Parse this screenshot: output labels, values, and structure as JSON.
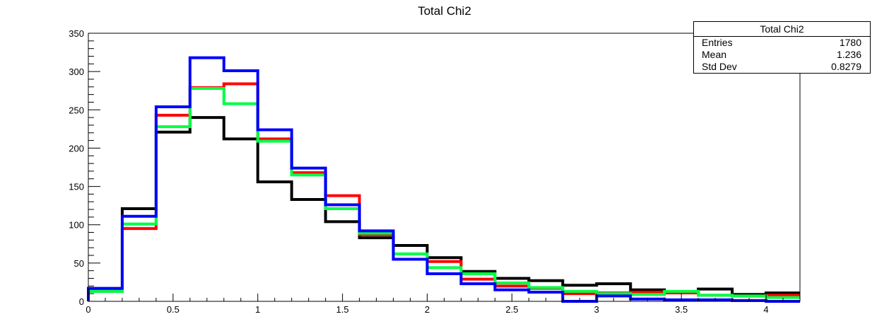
{
  "chart_data": {
    "type": "histogram",
    "title": "Total Chi2",
    "xlim": [
      0,
      4.2
    ],
    "ylim": [
      0,
      350
    ],
    "x_ticks": [
      "0",
      "0.5",
      "1",
      "1.5",
      "2",
      "2.5",
      "3",
      "3.5",
      "4"
    ],
    "y_ticks": [
      "0",
      "50",
      "100",
      "150",
      "200",
      "250",
      "300",
      "350"
    ],
    "bin_width": 0.2,
    "bin_edges": [
      0,
      0.2,
      0.4,
      0.6,
      0.8,
      1.0,
      1.2,
      1.4,
      1.6,
      1.8,
      2.0,
      2.2,
      2.4,
      2.6,
      2.8,
      3.0,
      3.2,
      3.4,
      3.6,
      3.8,
      4.0,
      4.2
    ],
    "series": [
      {
        "color": "#000000",
        "values": [
          13,
          121,
          221,
          240,
          212,
          156,
          133,
          104,
          83,
          73,
          57,
          39,
          30,
          27,
          21,
          23,
          15,
          12,
          16,
          9,
          11
        ]
      },
      {
        "color": "#ff0000",
        "values": [
          14,
          95,
          243,
          279,
          284,
          212,
          168,
          138,
          87,
          55,
          52,
          29,
          20,
          17,
          10,
          11,
          12,
          11,
          8,
          7,
          8
        ]
      },
      {
        "color": "#00ff44",
        "values": [
          13,
          101,
          228,
          278,
          258,
          209,
          165,
          121,
          89,
          62,
          44,
          36,
          24,
          18,
          13,
          10,
          9,
          13,
          8,
          7,
          5
        ]
      },
      {
        "color": "#0000ff",
        "values": [
          17,
          111,
          254,
          318,
          301,
          224,
          174,
          126,
          92,
          55,
          36,
          23,
          15,
          12,
          0,
          7,
          3,
          2,
          2,
          1,
          0
        ]
      }
    ]
  },
  "stats": {
    "title": "Total Chi2",
    "rows": [
      {
        "label": "Entries",
        "value": "1780"
      },
      {
        "label": "Mean",
        "value": "1.236"
      },
      {
        "label": "Std Dev",
        "value": "0.8279"
      }
    ]
  }
}
